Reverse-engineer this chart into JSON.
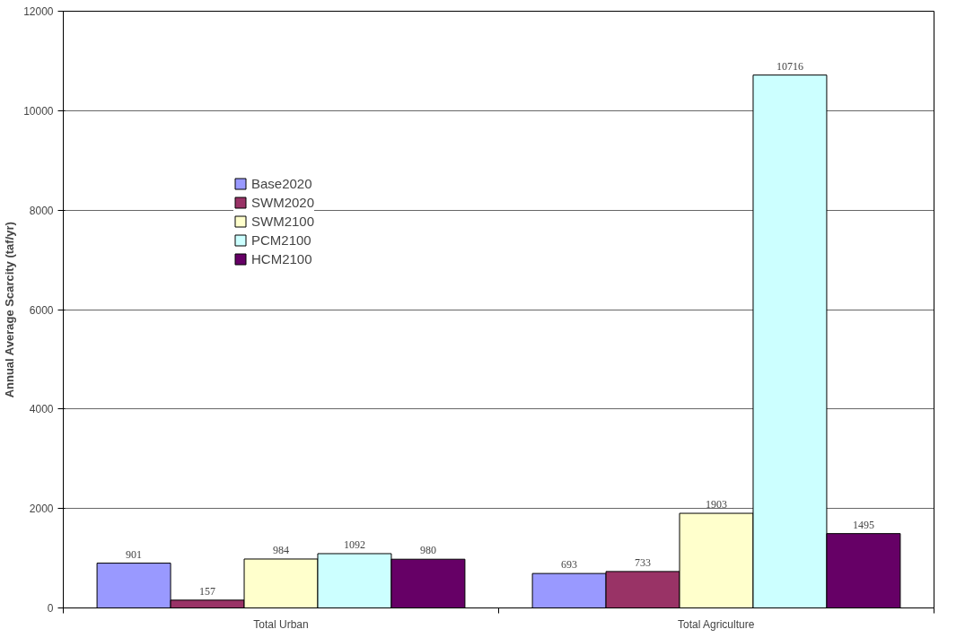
{
  "chart_data": {
    "type": "bar",
    "ylabel": "Annual Average Scarcity (taf/yr)",
    "categories": [
      "Total Urban",
      "Total Agriculture"
    ],
    "series": [
      {
        "name": "Base2020",
        "color": "#9999ff",
        "values": [
          901,
          693
        ]
      },
      {
        "name": "SWM2020",
        "color": "#993366",
        "values": [
          157,
          733
        ]
      },
      {
        "name": "SWM2100",
        "color": "#ffffcc",
        "values": [
          984,
          1903
        ]
      },
      {
        "name": "PCM2100",
        "color": "#ccffff",
        "values": [
          1092,
          10716
        ]
      },
      {
        "name": "HCM2100",
        "color": "#660066",
        "values": [
          980,
          1495
        ]
      }
    ],
    "ylim": [
      0,
      12000
    ],
    "yticks": [
      0,
      2000,
      4000,
      6000,
      8000,
      10000,
      12000
    ],
    "grid": "y",
    "legend": "top left",
    "data_labels": true
  }
}
